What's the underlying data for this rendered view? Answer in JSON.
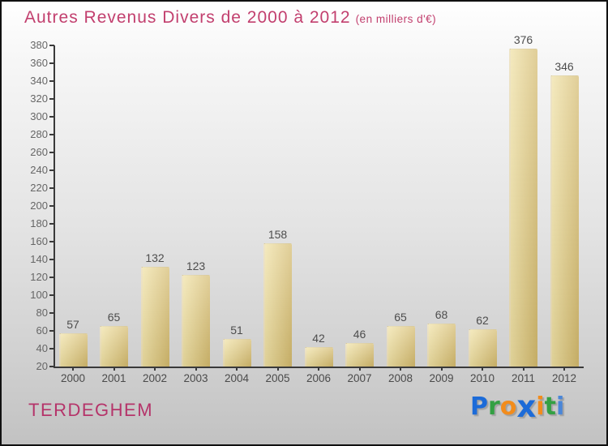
{
  "header": {
    "title": "Autres Revenus Divers de 2000 à 2012",
    "subtitle": "(en milliers d'€)",
    "title_color": "#c23f6e"
  },
  "chart_data": {
    "type": "bar",
    "title": "Autres Revenus Divers de 2000 à 2012",
    "subtitle": "(en milliers d'€)",
    "categories": [
      "2000",
      "2001",
      "2002",
      "2003",
      "2004",
      "2005",
      "2006",
      "2007",
      "2008",
      "2009",
      "2010",
      "2011",
      "2012"
    ],
    "values": [
      57,
      65,
      132,
      123,
      51,
      158,
      42,
      46,
      65,
      68,
      62,
      376,
      346
    ],
    "xlabel": "",
    "ylabel": "",
    "ylim": [
      20,
      380
    ],
    "ytick_step": 20,
    "grid": false,
    "legend": "none",
    "bar_color_light": "#efe0a2",
    "bar_color_dark": "#d3b96c",
    "axis_color": "#3a3a3a"
  },
  "footer": {
    "commune": "TERDEGHEM",
    "commune_color": "#b5346a",
    "logo_letters": [
      {
        "ch": "P",
        "color": "#1c6bd8",
        "big": false
      },
      {
        "ch": "r",
        "color": "#33a043",
        "big": false
      },
      {
        "ch": "o",
        "color": "#f28c1c",
        "big": false
      },
      {
        "ch": "x",
        "color": "#1c6bd8",
        "big": true
      },
      {
        "ch": "i",
        "color": "#f28c1c",
        "big": false
      },
      {
        "ch": "t",
        "color": "#33a043",
        "big": false
      },
      {
        "ch": "i",
        "color": "#4a86d8",
        "big": false
      }
    ]
  }
}
